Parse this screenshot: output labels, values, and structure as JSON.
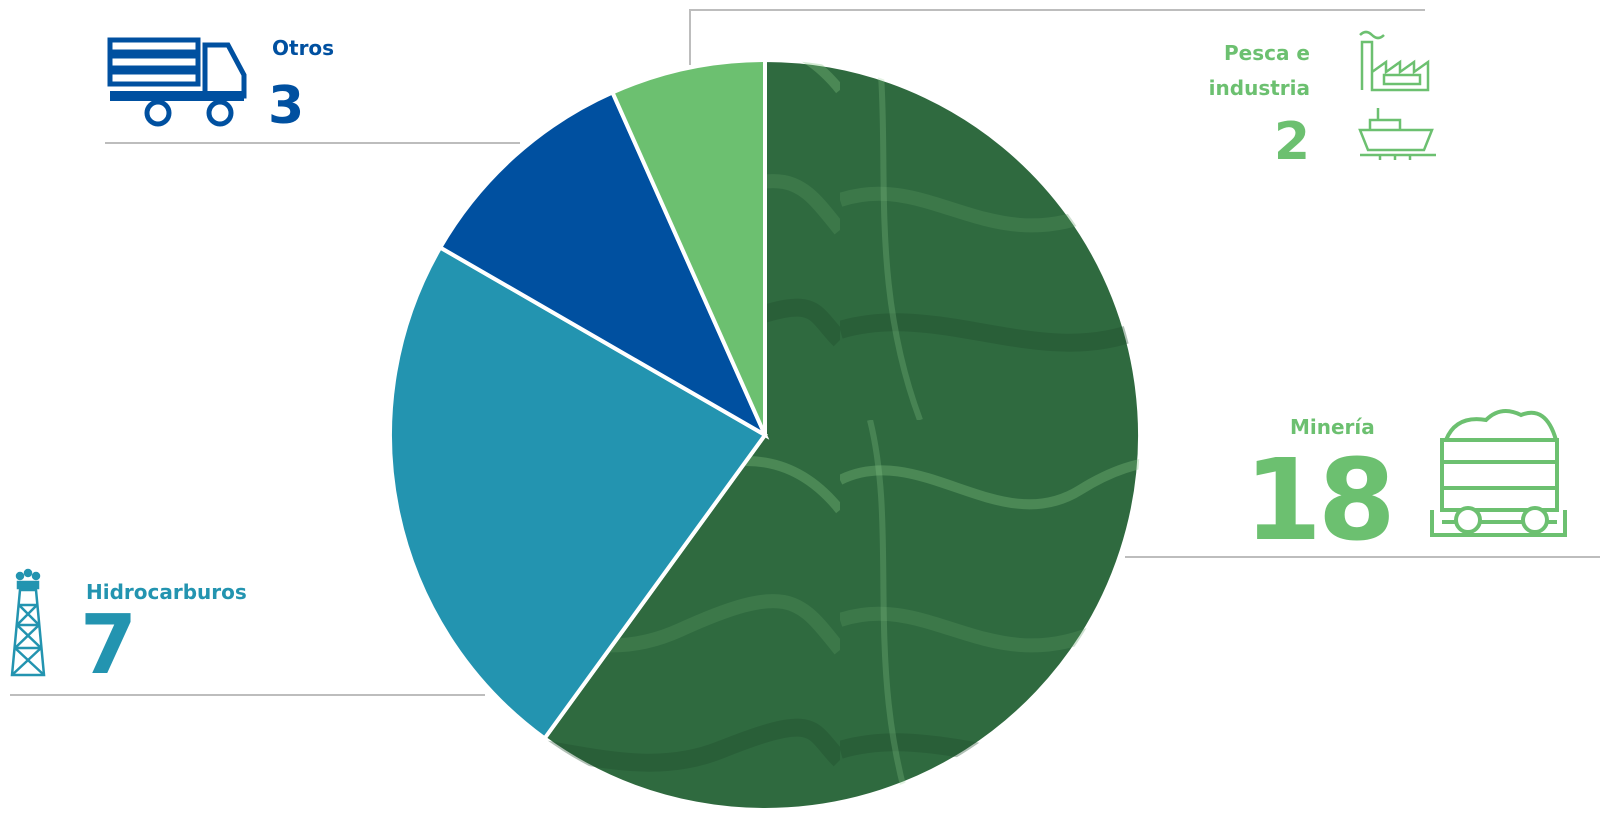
{
  "chart_data": {
    "type": "pie",
    "categories": [
      "Minería",
      "Hidrocarburos",
      "Otros",
      "Pesca e industria"
    ],
    "values": [
      18,
      7,
      3,
      2
    ],
    "colors": [
      "#2f6a3f",
      "#2394b0",
      "#0050a0",
      "#6cc070"
    ]
  }
}
